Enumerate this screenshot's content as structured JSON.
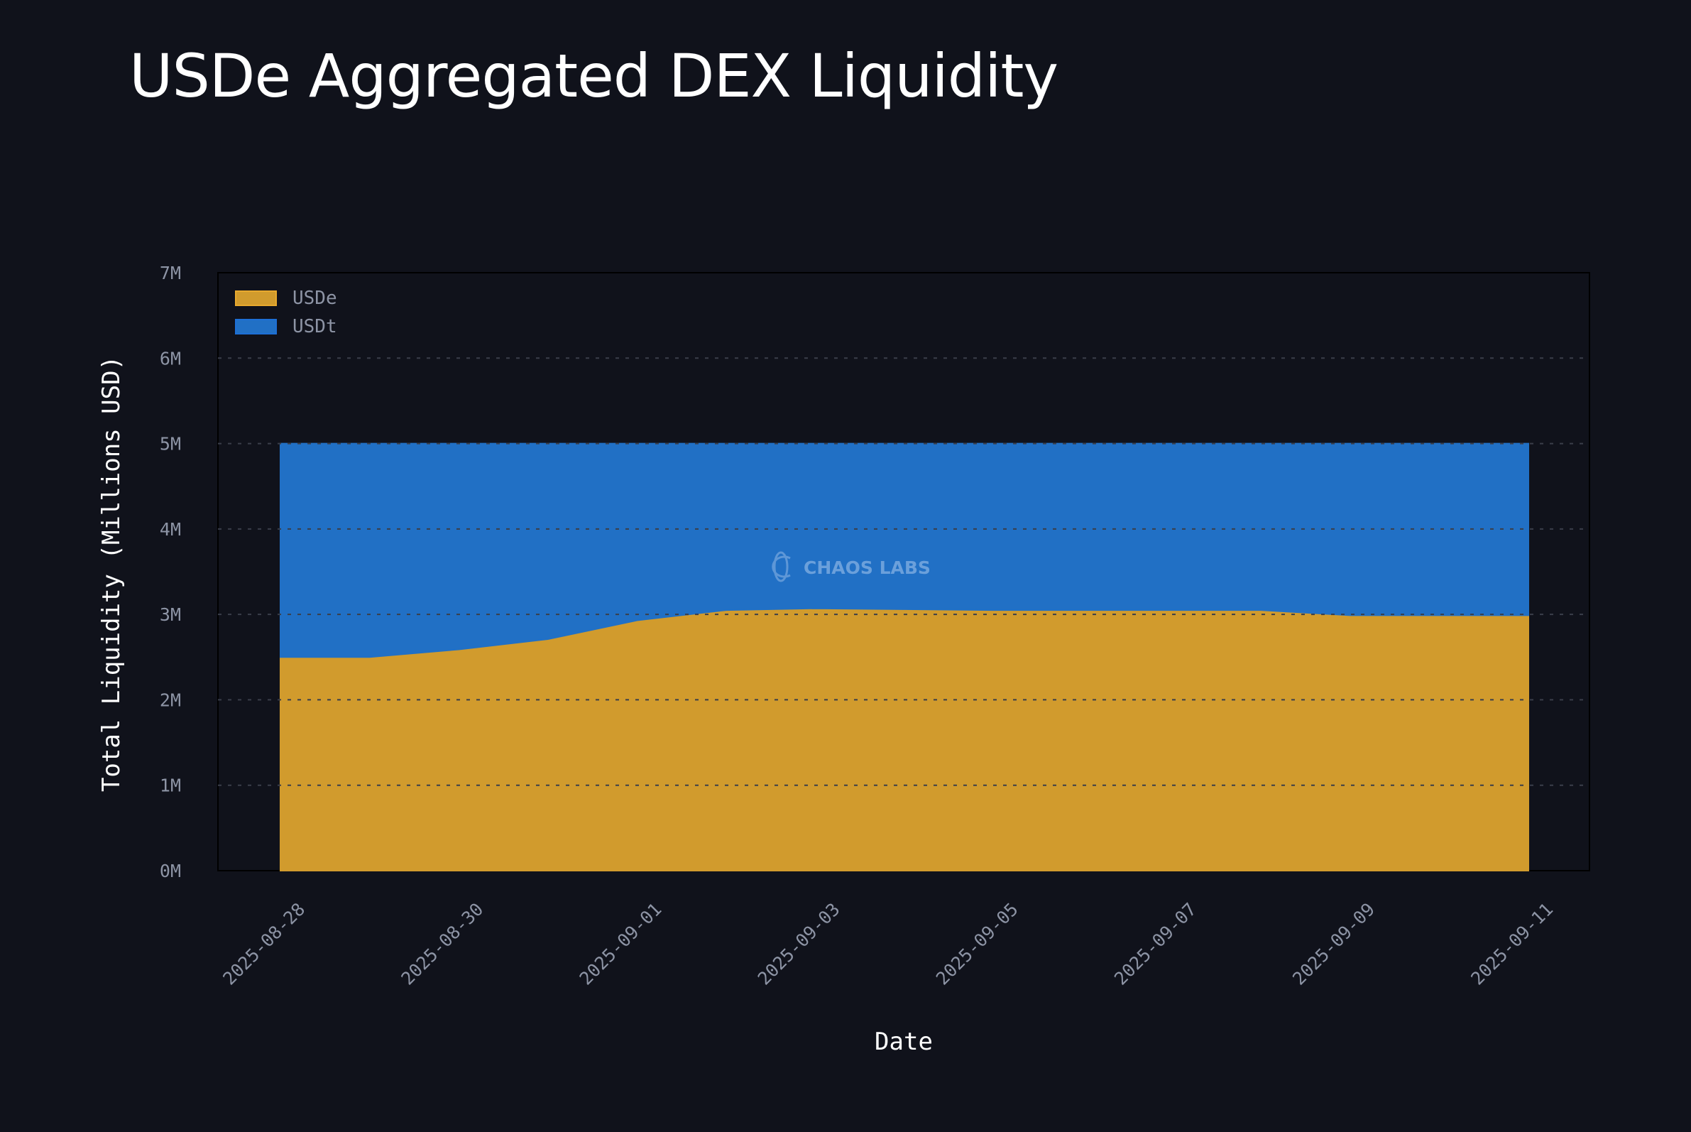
{
  "title": "USDe Aggregated DEX Liquidity",
  "watermark": "CHAOS LABS",
  "chart_data": {
    "type": "area",
    "stacked": true,
    "title": "USDe Aggregated DEX Liquidity",
    "xlabel": "Date",
    "ylabel": "Total Liquidity (Millions USD)",
    "x": [
      "2025-08-28",
      "2025-08-29",
      "2025-08-30",
      "2025-08-31",
      "2025-09-01",
      "2025-09-02",
      "2025-09-03",
      "2025-09-04",
      "2025-09-05",
      "2025-09-06",
      "2025-09-07",
      "2025-09-08",
      "2025-09-09",
      "2025-09-10",
      "2025-09-11"
    ],
    "series": [
      {
        "name": "USDe",
        "color": "#d19b2d",
        "values": [
          2.5,
          2.5,
          2.59,
          2.71,
          2.93,
          3.05,
          3.07,
          3.06,
          3.05,
          3.05,
          3.05,
          3.05,
          2.99,
          2.99,
          2.99
        ]
      },
      {
        "name": "USDt",
        "color": "#2170c5",
        "values": [
          2.5,
          2.5,
          2.41,
          2.29,
          2.07,
          1.95,
          1.93,
          1.94,
          1.95,
          1.95,
          1.95,
          1.95,
          2.01,
          2.01,
          2.01
        ]
      }
    ],
    "ylim": [
      0,
      7
    ],
    "yticks": [
      0,
      1,
      2,
      3,
      4,
      5,
      6,
      7
    ],
    "ytick_labels": [
      "0M",
      "1M",
      "2M",
      "3M",
      "4M",
      "5M",
      "6M",
      "7M"
    ],
    "xticks": [
      "2025-08-28",
      "2025-08-30",
      "2025-09-01",
      "2025-09-03",
      "2025-09-05",
      "2025-09-07",
      "2025-09-09",
      "2025-09-11"
    ],
    "grid": true,
    "legend_position": "top-left"
  }
}
